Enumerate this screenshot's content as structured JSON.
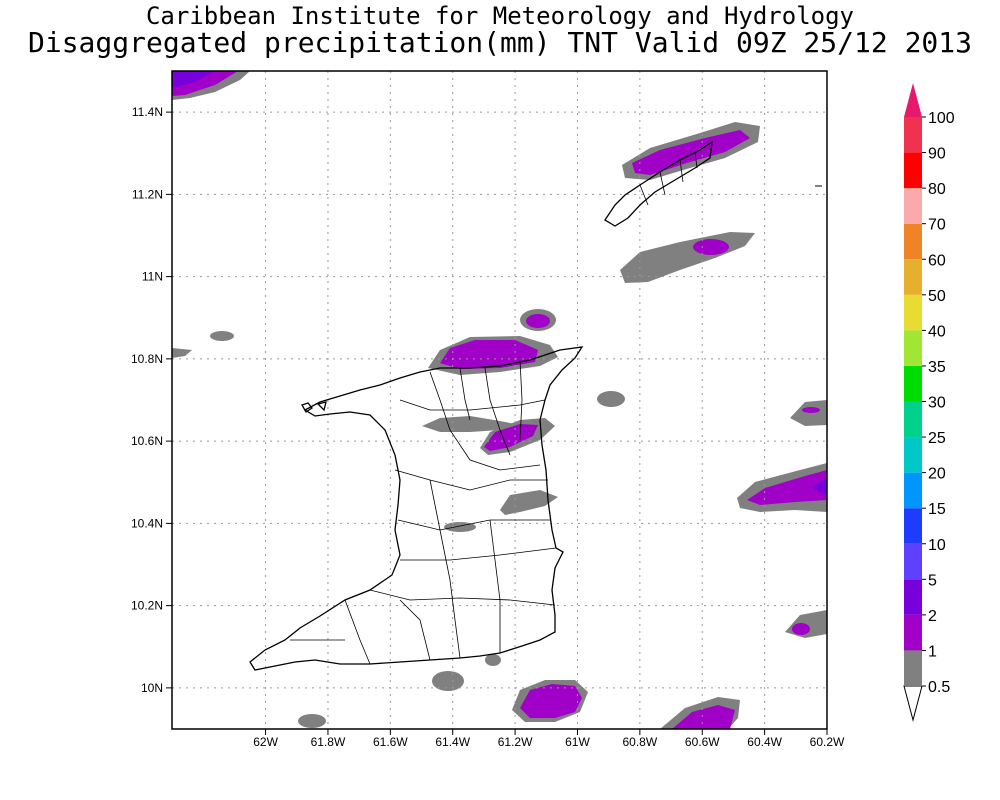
{
  "header": {
    "title_line1": "Caribbean Institute for Meteorology and Hydrology",
    "title_line2": "Disaggregated precipitation(mm) TNT Valid 09Z 25/12 2013"
  },
  "map": {
    "region": "Trinidad and Tobago",
    "lon_range": [
      -62.3,
      -60.2
    ],
    "lat_range": [
      9.9,
      11.5
    ],
    "x_ticks": [
      "62W",
      "61.8W",
      "61.6W",
      "61.4W",
      "61.2W",
      "61W",
      "60.8W",
      "60.6W",
      "60.4W",
      "60.2W"
    ],
    "y_ticks": [
      "11.4N",
      "11.2N",
      "11N",
      "10.8N",
      "10.6N",
      "10.4N",
      "10.2N",
      "10N"
    ],
    "grid": "dotted"
  },
  "colorbar": {
    "levels": [
      "0.5",
      "1",
      "2",
      "5",
      "10",
      "15",
      "20",
      "25",
      "30",
      "35",
      "40",
      "50",
      "60",
      "70",
      "80",
      "90",
      "100"
    ],
    "colors": [
      "#ffffff",
      "#808080",
      "#a000c8",
      "#7800dc",
      "#6040ff",
      "#1e3cff",
      "#0096ff",
      "#00c8c8",
      "#00d28c",
      "#00dc00",
      "#a0e632",
      "#e6dc32",
      "#e6af2d",
      "#f08228",
      "#faaaaa",
      "#ff0000",
      "#f03250",
      "#e6196e"
    ]
  }
}
